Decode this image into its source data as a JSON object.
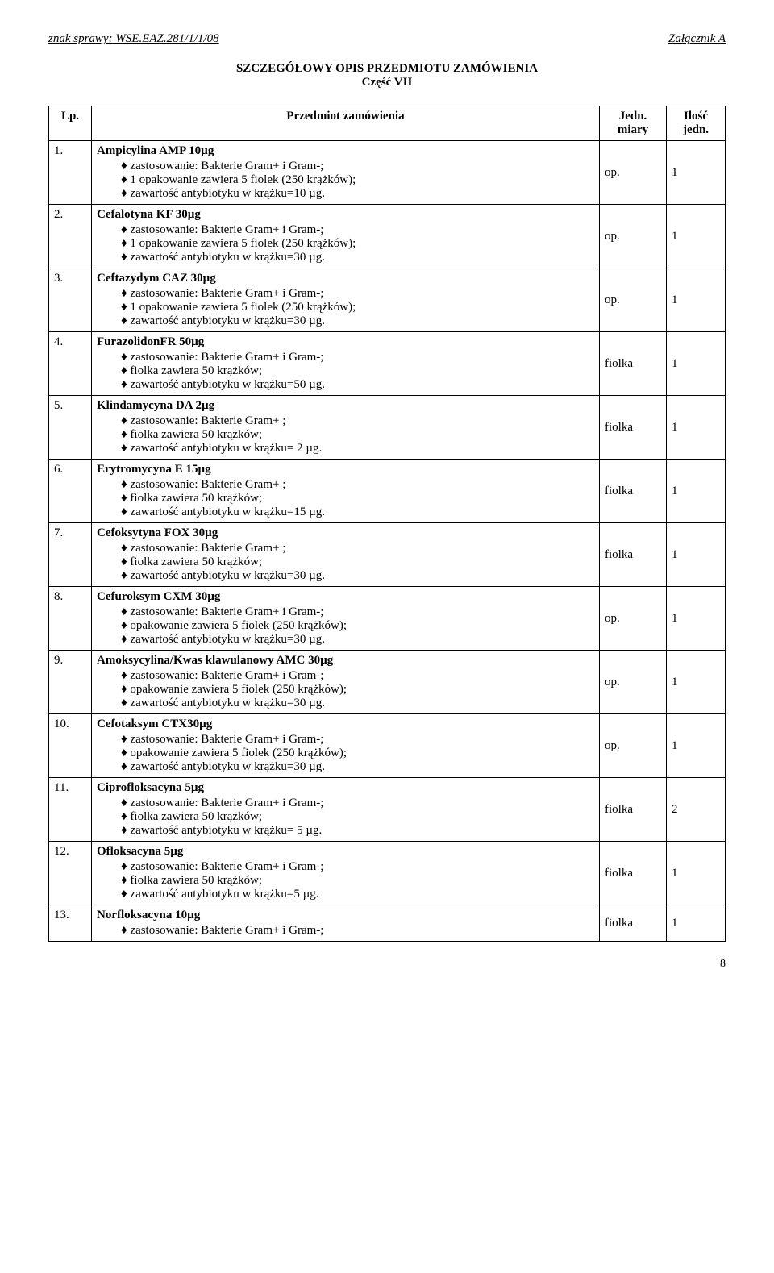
{
  "header": {
    "left": "znak sprawy: WSE.EAZ.281/1/1/08",
    "right": "Załącznik A"
  },
  "title_line1": "SZCZEGÓŁOWY OPIS PRZEDMIOTU ZAMÓWIENIA",
  "title_line2": "Część VII",
  "columns": {
    "lp": "Lp.",
    "subject": "Przedmiot zamówienia",
    "unit_l1": "Jedn.",
    "unit_l2": "miary",
    "qty_l1": "Ilość",
    "qty_l2": "jedn."
  },
  "items": [
    {
      "lp": "1.",
      "name": "Ampicylina AMP 10µg",
      "details": [
        "zastosowanie: Bakterie Gram+  i Gram-;",
        "1 opakowanie zawiera 5 fiolek (250 krążków);",
        "zawartość antybiotyku w krążku=10 µg."
      ],
      "unit": "op.",
      "qty": "1"
    },
    {
      "lp": "2.",
      "name": "Cefalotyna KF 30µg",
      "details": [
        "zastosowanie: Bakterie Gram+  i Gram-;",
        "1 opakowanie zawiera 5 fiolek (250 krążków);",
        "zawartość antybiotyku w krążku=30 µg."
      ],
      "unit": "op.",
      "qty": "1"
    },
    {
      "lp": "3.",
      "name": "Ceftazydym CAZ 30µg",
      "details": [
        "zastosowanie: Bakterie  Gram+ i Gram-;",
        "1 opakowanie zawiera 5 fiolek (250 krążków);",
        "zawartość antybiotyku w krążku=30 µg."
      ],
      "unit": "op.",
      "qty": "1"
    },
    {
      "lp": "4.",
      "name": "FurazolidonFR 50µg",
      "details": [
        "zastosowanie: Bakterie Gram+ i Gram-;",
        "fiolka zawiera 50 krążków;",
        "zawartość antybiotyku w krążku=50 µg."
      ],
      "unit": "fiolka",
      "qty": "1"
    },
    {
      "lp": "5.",
      "name": "Klindamycyna DA 2µg",
      "details": [
        "zastosowanie: Bakterie Gram+ ;",
        "fiolka zawiera 50 krążków;",
        "zawartość antybiotyku w krążku= 2 µg."
      ],
      "unit": "fiolka",
      "qty": "1"
    },
    {
      "lp": "6.",
      "name": "Erytromycyna E 15µg",
      "details": [
        "zastosowanie: Bakterie Gram+ ;",
        "fiolka zawiera 50 krążków;",
        "zawartość antybiotyku w krążku=15 µg."
      ],
      "unit": "fiolka",
      "qty": "1"
    },
    {
      "lp": "7.",
      "name": "Cefoksytyna FOX 30µg",
      "details": [
        "zastosowanie: Bakterie Gram+ ;",
        "fiolka zawiera 50 krążków;",
        "zawartość antybiotyku w krążku=30 µg."
      ],
      "unit": "fiolka",
      "qty": "1"
    },
    {
      "lp": "8.",
      "name": "Cefuroksym CXM 30µg",
      "details": [
        "zastosowanie: Bakterie  Gram+ i Gram-;",
        "opakowanie zawiera 5 fiolek (250 krążków);",
        "zawartość antybiotyku w krążku=30 µg."
      ],
      "unit": "op.",
      "qty": "1"
    },
    {
      "lp": "9.",
      "name": "Amoksycylina/Kwas klawulanowy AMC 30µg",
      "details": [
        "zastosowanie: Bakterie  Gram+  i Gram-;",
        "opakowanie zawiera 5 fiolek (250 krążków);",
        "zawartość antybiotyku w krążku=30 µg."
      ],
      "unit": "op.",
      "qty": "1"
    },
    {
      "lp": "10.",
      "name": "Cefotaksym CTX30µg",
      "details": [
        "zastosowanie: Bakterie  Gram+ i Gram-;",
        "opakowanie zawiera 5 fiolek (250 krążków);",
        "zawartość antybiotyku w krążku=30 µg."
      ],
      "unit": "op.",
      "qty": "1"
    },
    {
      "lp": "11.",
      "name": "Ciprofloksacyna 5µg",
      "details": [
        "zastosowanie: Bakterie  Gram+ i Gram-;",
        "fiolka zawiera 50 krążków;",
        "zawartość antybiotyku w krążku= 5 µg."
      ],
      "unit": "fiolka",
      "qty": "2"
    },
    {
      "lp": "12.",
      "name": "Ofloksacyna 5µg",
      "details": [
        "zastosowanie: Bakterie  Gram+ i Gram-;",
        "fiolka zawiera 50 krążków;",
        "zawartość antybiotyku w krążku=5 µg."
      ],
      "unit": "fiolka",
      "qty": "1"
    },
    {
      "lp": "13.",
      "name": "Norfloksacyna 10µg",
      "details": [
        "zastosowanie: Bakterie  Gram+ i Gram-;"
      ],
      "unit": "fiolka",
      "qty": "1"
    }
  ],
  "page_number": "8"
}
